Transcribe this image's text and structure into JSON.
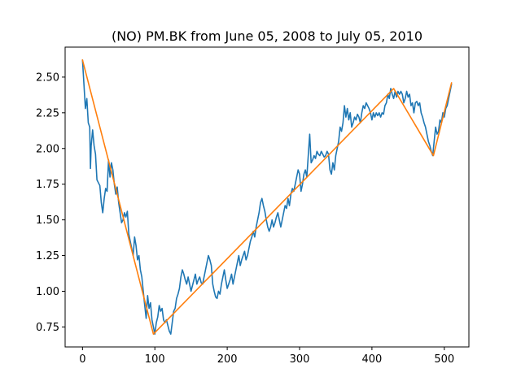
{
  "chart_data": {
    "type": "line",
    "title": "(NO) PM.BK from June 05, 2008 to July 05, 2010",
    "xlabel": "",
    "ylabel": "",
    "xlim": [
      -24,
      534
    ],
    "ylim": [
      0.61,
      2.71
    ],
    "x_ticks": [
      "0",
      "100",
      "200",
      "300",
      "400",
      "500"
    ],
    "y_ticks": [
      "0.75",
      "1.00",
      "1.25",
      "1.50",
      "1.75",
      "2.00",
      "2.25",
      "2.50"
    ],
    "grid": false,
    "legend": "none",
    "series": [
      {
        "color": "#1f77b4",
        "points": [
          [
            0,
            2.62
          ],
          [
            2,
            2.45
          ],
          [
            4,
            2.28
          ],
          [
            6,
            2.35
          ],
          [
            8,
            2.18
          ],
          [
            10,
            2.15
          ],
          [
            11,
            1.86
          ],
          [
            12,
            2.02
          ],
          [
            14,
            2.13
          ],
          [
            16,
            2.02
          ],
          [
            18,
            1.96
          ],
          [
            20,
            1.78
          ],
          [
            22,
            1.76
          ],
          [
            24,
            1.74
          ],
          [
            26,
            1.62
          ],
          [
            28,
            1.55
          ],
          [
            30,
            1.65
          ],
          [
            32,
            1.72
          ],
          [
            34,
            1.7
          ],
          [
            36,
            1.92
          ],
          [
            38,
            1.8
          ],
          [
            40,
            1.9
          ],
          [
            42,
            1.85
          ],
          [
            44,
            1.75
          ],
          [
            46,
            1.68
          ],
          [
            48,
            1.73
          ],
          [
            50,
            1.62
          ],
          [
            52,
            1.55
          ],
          [
            54,
            1.48
          ],
          [
            56,
            1.5
          ],
          [
            58,
            1.55
          ],
          [
            60,
            1.52
          ],
          [
            62,
            1.56
          ],
          [
            64,
            1.4
          ],
          [
            66,
            1.35
          ],
          [
            68,
            1.3
          ],
          [
            70,
            1.25
          ],
          [
            72,
            1.38
          ],
          [
            74,
            1.32
          ],
          [
            76,
            1.22
          ],
          [
            78,
            1.25
          ],
          [
            80,
            1.15
          ],
          [
            82,
            1.1
          ],
          [
            84,
            1.0
          ],
          [
            86,
            0.9
          ],
          [
            88,
            0.81
          ],
          [
            90,
            0.97
          ],
          [
            92,
            0.88
          ],
          [
            94,
            0.92
          ],
          [
            96,
            0.8
          ],
          [
            98,
            0.75
          ],
          [
            100,
            0.7
          ],
          [
            102,
            0.78
          ],
          [
            104,
            0.82
          ],
          [
            106,
            0.9
          ],
          [
            108,
            0.86
          ],
          [
            110,
            0.88
          ],
          [
            112,
            0.8
          ],
          [
            114,
            0.78
          ],
          [
            116,
            0.8
          ],
          [
            118,
            0.76
          ],
          [
            120,
            0.72
          ],
          [
            122,
            0.7
          ],
          [
            124,
            0.78
          ],
          [
            126,
            0.86
          ],
          [
            128,
            0.88
          ],
          [
            130,
            0.95
          ],
          [
            132,
            0.98
          ],
          [
            134,
            1.02
          ],
          [
            136,
            1.1
          ],
          [
            138,
            1.15
          ],
          [
            140,
            1.12
          ],
          [
            142,
            1.08
          ],
          [
            144,
            1.05
          ],
          [
            146,
            1.1
          ],
          [
            148,
            1.05
          ],
          [
            150,
            1.0
          ],
          [
            152,
            1.04
          ],
          [
            154,
            1.08
          ],
          [
            156,
            1.12
          ],
          [
            158,
            1.05
          ],
          [
            160,
            1.08
          ],
          [
            162,
            1.1
          ],
          [
            164,
            1.06
          ],
          [
            166,
            1.05
          ],
          [
            168,
            1.1
          ],
          [
            170,
            1.15
          ],
          [
            172,
            1.2
          ],
          [
            174,
            1.25
          ],
          [
            176,
            1.22
          ],
          [
            178,
            1.18
          ],
          [
            180,
            1.05
          ],
          [
            182,
            1.0
          ],
          [
            184,
            0.96
          ],
          [
            186,
            0.95
          ],
          [
            188,
            1.0
          ],
          [
            190,
            0.98
          ],
          [
            192,
            1.05
          ],
          [
            194,
            1.1
          ],
          [
            196,
            1.15
          ],
          [
            198,
            1.08
          ],
          [
            200,
            1.02
          ],
          [
            202,
            1.05
          ],
          [
            204,
            1.08
          ],
          [
            206,
            1.12
          ],
          [
            208,
            1.05
          ],
          [
            210,
            1.1
          ],
          [
            212,
            1.15
          ],
          [
            214,
            1.2
          ],
          [
            216,
            1.25
          ],
          [
            218,
            1.18
          ],
          [
            220,
            1.22
          ],
          [
            222,
            1.25
          ],
          [
            224,
            1.28
          ],
          [
            226,
            1.22
          ],
          [
            228,
            1.25
          ],
          [
            230,
            1.3
          ],
          [
            232,
            1.35
          ],
          [
            234,
            1.38
          ],
          [
            236,
            1.42
          ],
          [
            238,
            1.38
          ],
          [
            240,
            1.45
          ],
          [
            242,
            1.5
          ],
          [
            244,
            1.55
          ],
          [
            246,
            1.62
          ],
          [
            248,
            1.65
          ],
          [
            250,
            1.6
          ],
          [
            252,
            1.56
          ],
          [
            254,
            1.5
          ],
          [
            256,
            1.45
          ],
          [
            258,
            1.42
          ],
          [
            260,
            1.45
          ],
          [
            262,
            1.5
          ],
          [
            264,
            1.45
          ],
          [
            266,
            1.48
          ],
          [
            268,
            1.52
          ],
          [
            270,
            1.55
          ],
          [
            272,
            1.5
          ],
          [
            274,
            1.45
          ],
          [
            276,
            1.5
          ],
          [
            278,
            1.55
          ],
          [
            280,
            1.6
          ],
          [
            282,
            1.58
          ],
          [
            284,
            1.65
          ],
          [
            286,
            1.6
          ],
          [
            288,
            1.68
          ],
          [
            290,
            1.72
          ],
          [
            292,
            1.7
          ],
          [
            294,
            1.75
          ],
          [
            296,
            1.8
          ],
          [
            298,
            1.85
          ],
          [
            300,
            1.82
          ],
          [
            302,
            1.7
          ],
          [
            304,
            1.75
          ],
          [
            306,
            1.82
          ],
          [
            308,
            1.85
          ],
          [
            310,
            1.8
          ],
          [
            312,
            1.95
          ],
          [
            314,
            2.1
          ],
          [
            316,
            1.9
          ],
          [
            318,
            1.92
          ],
          [
            320,
            1.95
          ],
          [
            322,
            1.93
          ],
          [
            324,
            1.98
          ],
          [
            326,
            1.96
          ],
          [
            328,
            1.95
          ],
          [
            330,
            1.98
          ],
          [
            332,
            1.96
          ],
          [
            334,
            1.94
          ],
          [
            336,
            1.95
          ],
          [
            338,
            1.98
          ],
          [
            340,
            1.96
          ],
          [
            342,
            1.85
          ],
          [
            344,
            1.82
          ],
          [
            346,
            1.9
          ],
          [
            348,
            1.85
          ],
          [
            350,
            1.95
          ],
          [
            352,
            2.0
          ],
          [
            354,
            2.05
          ],
          [
            356,
            2.15
          ],
          [
            358,
            2.12
          ],
          [
            360,
            2.18
          ],
          [
            362,
            2.3
          ],
          [
            364,
            2.22
          ],
          [
            366,
            2.28
          ],
          [
            368,
            2.2
          ],
          [
            370,
            2.25
          ],
          [
            372,
            2.15
          ],
          [
            374,
            2.18
          ],
          [
            376,
            2.22
          ],
          [
            378,
            2.2
          ],
          [
            380,
            2.24
          ],
          [
            382,
            2.22
          ],
          [
            384,
            2.18
          ],
          [
            386,
            2.25
          ],
          [
            388,
            2.3
          ],
          [
            390,
            2.28
          ],
          [
            392,
            2.32
          ],
          [
            394,
            2.3
          ],
          [
            396,
            2.28
          ],
          [
            398,
            2.25
          ],
          [
            400,
            2.2
          ],
          [
            402,
            2.25
          ],
          [
            404,
            2.22
          ],
          [
            406,
            2.25
          ],
          [
            408,
            2.23
          ],
          [
            410,
            2.25
          ],
          [
            412,
            2.22
          ],
          [
            414,
            2.25
          ],
          [
            416,
            2.24
          ],
          [
            418,
            2.3
          ],
          [
            420,
            2.32
          ],
          [
            422,
            2.38
          ],
          [
            424,
            2.35
          ],
          [
            426,
            2.42
          ],
          [
            428,
            2.38
          ],
          [
            430,
            2.35
          ],
          [
            432,
            2.4
          ],
          [
            434,
            2.36
          ],
          [
            436,
            2.4
          ],
          [
            438,
            2.38
          ],
          [
            440,
            2.4
          ],
          [
            442,
            2.38
          ],
          [
            444,
            2.32
          ],
          [
            446,
            2.35
          ],
          [
            448,
            2.4
          ],
          [
            450,
            2.36
          ],
          [
            452,
            2.38
          ],
          [
            454,
            2.3
          ],
          [
            456,
            2.32
          ],
          [
            458,
            2.25
          ],
          [
            460,
            2.32
          ],
          [
            462,
            2.33
          ],
          [
            464,
            2.3
          ],
          [
            466,
            2.32
          ],
          [
            468,
            2.25
          ],
          [
            470,
            2.22
          ],
          [
            472,
            2.18
          ],
          [
            474,
            2.15
          ],
          [
            476,
            2.1
          ],
          [
            478,
            2.05
          ],
          [
            480,
            2.02
          ],
          [
            482,
            1.98
          ],
          [
            484,
            1.95
          ],
          [
            486,
            2.05
          ],
          [
            488,
            2.15
          ],
          [
            490,
            2.1
          ],
          [
            492,
            2.12
          ],
          [
            494,
            2.2
          ],
          [
            496,
            2.18
          ],
          [
            498,
            2.25
          ],
          [
            500,
            2.22
          ],
          [
            502,
            2.28
          ],
          [
            504,
            2.3
          ],
          [
            506,
            2.35
          ],
          [
            508,
            2.4
          ],
          [
            510,
            2.45
          ]
        ]
      },
      {
        "color": "#ff7f0e",
        "points": [
          [
            0,
            2.62
          ],
          [
            98,
            0.7
          ],
          [
            430,
            2.42
          ],
          [
            485,
            1.95
          ],
          [
            510,
            2.46
          ]
        ]
      }
    ]
  }
}
